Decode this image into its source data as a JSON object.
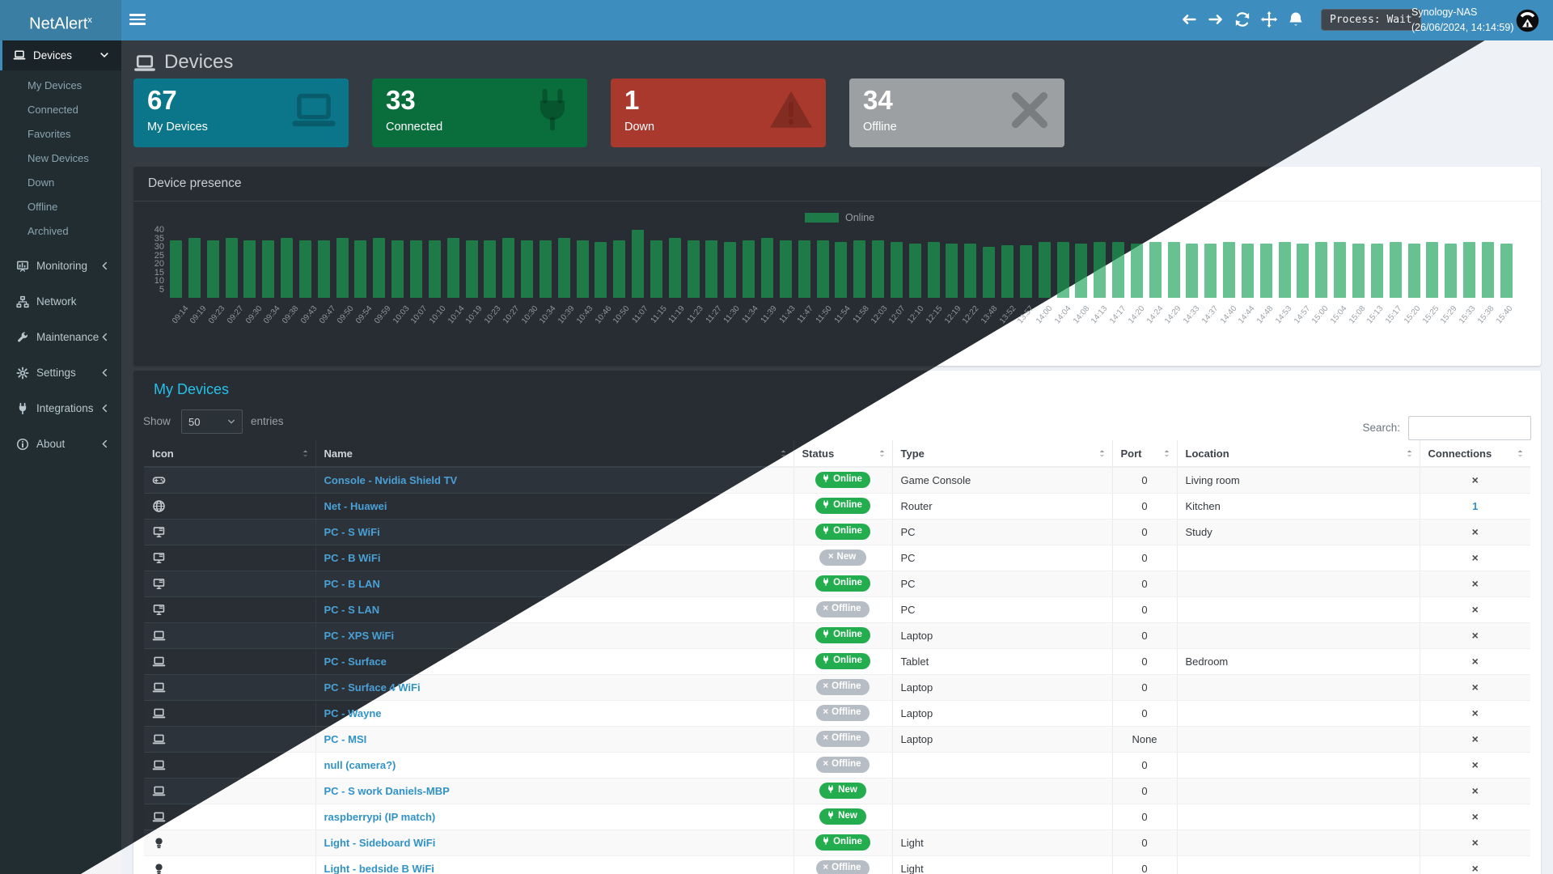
{
  "colors": {
    "navbar_blue": "#3d8ebf",
    "logo_blue": "#3b7ea4",
    "accent_cyan": "#25c1e8",
    "pill_green": "#23ad4e",
    "pill_gray": "#b6bdc4",
    "bar_dark": "#1e7a46",
    "bar_light": "#68c191",
    "card_teal": "#0b7689",
    "card_green": "#0a6e3c",
    "card_red": "#a8392c",
    "card_gray": "#9da0a3"
  },
  "navbar": {
    "logo_text": "NetAlert",
    "logo_sup": "x",
    "process_label": "Process: Wait",
    "host": "Synology-NAS",
    "datetime": "(26/06/2024, 14:14:59)"
  },
  "sidebar": {
    "active_item": {
      "label": "Devices",
      "icon": "laptop-icon"
    },
    "submenu": [
      "My Devices",
      "Connected",
      "Favorites",
      "New Devices",
      "Down",
      "Offline",
      "Archived"
    ],
    "menu": [
      {
        "label": "Monitoring",
        "icon": "monitoring-icon",
        "chevron": true
      },
      {
        "label": "Network",
        "icon": "network-icon",
        "chevron": false
      },
      {
        "label": "Maintenance",
        "icon": "wrench-icon",
        "chevron": true
      },
      {
        "label": "Settings",
        "icon": "gear-icon",
        "chevron": true
      },
      {
        "label": "Integrations",
        "icon": "plug-icon",
        "chevron": true
      },
      {
        "label": "About",
        "icon": "info-icon",
        "chevron": true
      }
    ]
  },
  "page": {
    "title": "Devices"
  },
  "cards": [
    {
      "value": "67",
      "label": "My Devices",
      "color": "#0b7689",
      "icon": "laptop-icon"
    },
    {
      "value": "33",
      "label": "Connected",
      "color": "#0a6e3c",
      "icon": "plug-icon"
    },
    {
      "value": "1",
      "label": "Down",
      "color": "#a8392c",
      "icon": "warning-icon"
    },
    {
      "value": "34",
      "label": "Offline",
      "color": "#9da0a3",
      "icon": "x-icon"
    }
  ],
  "presence": {
    "title": "Device presence",
    "legend": "Online"
  },
  "chart_data": {
    "type": "bar",
    "title": "Device presence",
    "legend": [
      "Online"
    ],
    "legend_position": "top-center",
    "xlabel": "",
    "ylabel": "",
    "ylim": [
      0,
      40
    ],
    "yticks": [
      5,
      10,
      15,
      20,
      25,
      30,
      35,
      40
    ],
    "grid": false,
    "categories": [
      "09:14",
      "09:19",
      "09:23",
      "09:27",
      "09:30",
      "09:34",
      "09:38",
      "09:43",
      "09:47",
      "09:50",
      "09:54",
      "09:59",
      "10:03",
      "10:07",
      "10:10",
      "10:14",
      "10:19",
      "10:23",
      "10:27",
      "10:30",
      "10:34",
      "10:39",
      "10:43",
      "10:46",
      "10:50",
      "11:07",
      "11:15",
      "11:19",
      "11:23",
      "11:27",
      "11:30",
      "11:34",
      "11:39",
      "11:43",
      "11:47",
      "11:50",
      "11:54",
      "11:58",
      "12:03",
      "12:07",
      "12:10",
      "12:15",
      "12:19",
      "12:22",
      "13:48",
      "13:52",
      "13:57",
      "14:00",
      "14:04",
      "14:08",
      "14:13",
      "14:17",
      "14:20",
      "14:24",
      "14:29",
      "14:33",
      "14:37",
      "14:40",
      "14:44",
      "14:48",
      "14:53",
      "14:57",
      "15:00",
      "15:04",
      "15:08",
      "15:13",
      "15:17",
      "15:20",
      "15:25",
      "15:29",
      "15:33",
      "15:38",
      "15:40"
    ],
    "series": [
      {
        "name": "Online",
        "values": [
          34,
          35,
          34,
          35,
          34,
          34,
          35,
          34,
          34,
          35,
          34,
          35,
          34,
          34,
          34,
          35,
          34,
          34,
          35,
          34,
          34,
          35,
          34,
          33,
          34,
          40,
          34,
          35,
          34,
          34,
          33,
          34,
          35,
          34,
          34,
          34,
          33,
          34,
          34,
          33,
          32,
          33,
          32,
          32,
          30,
          31,
          31,
          33,
          33,
          32,
          33,
          33,
          32,
          33,
          33,
          32,
          32,
          33,
          32,
          32,
          33,
          32,
          33,
          33,
          32,
          32,
          33,
          32,
          33,
          32,
          33,
          33,
          32
        ]
      }
    ]
  },
  "table": {
    "heading": "My Devices",
    "show_label": "Show",
    "show_value": "50",
    "entries_label": "entries",
    "search_label": "Search:",
    "search_value": "",
    "columns": [
      "Icon",
      "Name",
      "Status",
      "Type",
      "Port",
      "Location",
      "Connections"
    ],
    "rows": [
      {
        "icon": "gamepad-icon",
        "name": "Console - Nvidia Shield TV",
        "status": "Online",
        "badge": "green-plug",
        "type": "Game Console",
        "port": "0",
        "location": "Living room",
        "connections": "x"
      },
      {
        "icon": "globe-icon",
        "name": "Net - Huawei",
        "status": "Online",
        "badge": "green-plug",
        "type": "Router",
        "port": "0",
        "location": "Kitchen",
        "connections": "1"
      },
      {
        "icon": "desktop-icon",
        "name": "PC - S WiFi",
        "status": "Online",
        "badge": "green-plug",
        "type": "PC",
        "port": "0",
        "location": "Study",
        "connections": "x"
      },
      {
        "icon": "desktop-icon",
        "name": "PC - B WiFi",
        "status": "New",
        "badge": "gray-x",
        "type": "PC",
        "port": "0",
        "location": "",
        "connections": "x"
      },
      {
        "icon": "desktop-icon",
        "name": "PC - B LAN",
        "status": "Online",
        "badge": "green-plug",
        "type": "PC",
        "port": "0",
        "location": "",
        "connections": "x"
      },
      {
        "icon": "desktop-icon",
        "name": "PC - S LAN",
        "status": "Offline",
        "badge": "gray-x",
        "type": "PC",
        "port": "0",
        "location": "",
        "connections": "x"
      },
      {
        "icon": "laptop-icon",
        "name": "PC - XPS WiFi",
        "status": "Online",
        "badge": "green-plug",
        "type": "Laptop",
        "port": "0",
        "location": "",
        "connections": "x"
      },
      {
        "icon": "laptop-icon",
        "name": "PC - Surface",
        "status": "Online",
        "badge": "green-plug",
        "type": "Tablet",
        "port": "0",
        "location": "Bedroom",
        "connections": "x"
      },
      {
        "icon": "laptop-icon",
        "name": "PC - Surface 4 WiFi",
        "status": "Offline",
        "badge": "gray-x",
        "type": "Laptop",
        "port": "0",
        "location": "",
        "connections": "x"
      },
      {
        "icon": "laptop-icon",
        "name": "PC - Wayne",
        "status": "Offline",
        "badge": "gray-x",
        "type": "Laptop",
        "port": "0",
        "location": "",
        "connections": "x"
      },
      {
        "icon": "laptop-icon",
        "name": "PC - MSI",
        "status": "Offline",
        "badge": "gray-x",
        "type": "Laptop",
        "port": "None",
        "location": "",
        "connections": "x"
      },
      {
        "icon": "laptop-icon",
        "name": "null (camera?)",
        "status": "Offline",
        "badge": "gray-x",
        "type": "",
        "port": "0",
        "location": "",
        "connections": "x"
      },
      {
        "icon": "laptop-icon",
        "name": "PC - S work Daniels-MBP",
        "status": "New",
        "badge": "green-plug",
        "type": "",
        "port": "0",
        "location": "",
        "connections": "x"
      },
      {
        "icon": "laptop-icon",
        "name": "raspberrypi (IP match)",
        "status": "New",
        "badge": "green-plug",
        "type": "",
        "port": "0",
        "location": "",
        "connections": "x"
      },
      {
        "icon": "lightbulb-icon",
        "name": "Light - Sideboard WiFi",
        "status": "Online",
        "badge": "green-plug",
        "type": "Light",
        "port": "0",
        "location": "",
        "connections": "x"
      },
      {
        "icon": "lightbulb-icon",
        "name": "Light - bedside B WiFi",
        "status": "Offline",
        "badge": "gray-x",
        "type": "Light",
        "port": "0",
        "location": "",
        "connections": "x"
      }
    ]
  }
}
